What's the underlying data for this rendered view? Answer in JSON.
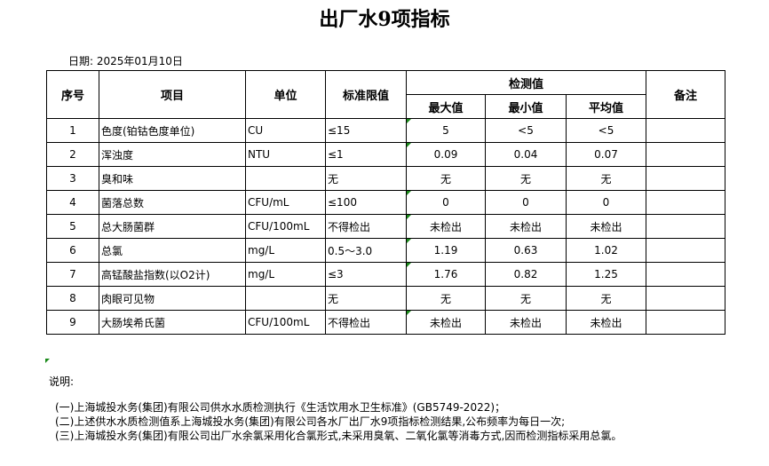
{
  "title": "出厂水9项指标",
  "date": "日期: 2025年01月10日",
  "headers": {
    "no": "序号",
    "item": "项目",
    "unit": "单位",
    "limit": "标准限值",
    "measured": "检测值",
    "max": "最大值",
    "min": "最小值",
    "avg": "平均值",
    "remark": "备注"
  },
  "rows": [
    [
      "1",
      "色度(铂钴色度单位)",
      "CU",
      "≤15",
      "5",
      "<5",
      "<5"
    ],
    [
      "2",
      "浑浊度",
      "NTU",
      "≤1",
      "0.09",
      "0.04",
      "0.07"
    ],
    [
      "3",
      "臭和味",
      "",
      "无",
      "无",
      "无",
      "无"
    ],
    [
      "4",
      "菌落总数",
      "CFU/mL",
      "≤100",
      "0",
      "0",
      "0"
    ],
    [
      "5",
      "总大肠菌群",
      "CFU/100mL",
      "不得检出",
      "未检出",
      "未检出",
      "未检出"
    ],
    [
      "6",
      "总氯",
      "mg/L",
      "0.5～3.0",
      "1.19",
      "0.63",
      "1.02"
    ],
    [
      "7",
      "高锰酸盐指数(以O2计)",
      "mg/L",
      "≤3",
      "1.76",
      "0.82",
      "1.25"
    ],
    [
      "8",
      "肉眼可见物",
      "",
      "无",
      "无",
      "无",
      "无"
    ],
    [
      "9",
      "大肠埃希氏菌",
      "CFU/100mL",
      "不得检出",
      "未检出",
      "未检出",
      "未检出"
    ]
  ],
  "notes": {
    "label": "说明:",
    "lines": [
      "(一)上海城投水务(集团)有限公司供水水质检测执行《生活饮用水卫生标准》(GB5749-2022)；",
      "(二)上述供水水质检测值系上海城投水务(集团)有限公司各水厂出厂水9项指标检测结果,公布频率为每日一次;",
      "(三)上海城投水务(集团)有限公司出厂水余氯采用化合氯形式,未采用臭氧、二氧化氯等消毒方式,因而检测指标采用总氯。"
    ]
  }
}
